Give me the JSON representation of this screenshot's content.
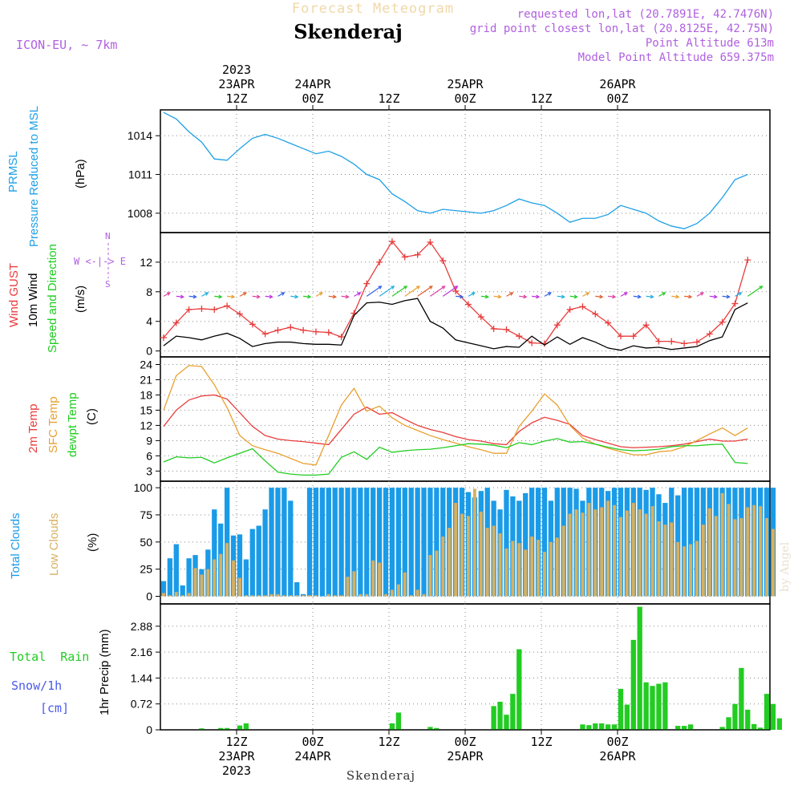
{
  "header": {
    "title": "Forecast Meteogram",
    "location": "Skenderaj",
    "model": "ICON-EU, ~ 7km",
    "requested": "requested lon,lat (20.7891E, 42.7476N)",
    "grid": "grid point closest lon,lat (20.8125E, 42.75N)",
    "altitude": "Point Altitude 613m",
    "model_altitude": "Model Point Altitude 659.375m",
    "credit": "by Angel",
    "footer_location": "Skenderaj"
  },
  "time_axis": {
    "top_labels": [
      {
        "h": 12,
        "lines": [
          "2023",
          "23APR",
          "12Z"
        ]
      },
      {
        "h": 24,
        "lines": [
          "24APR",
          "00Z"
        ]
      },
      {
        "h": 36,
        "lines": [
          "12Z"
        ]
      },
      {
        "h": 48,
        "lines": [
          "25APR",
          "00Z"
        ]
      },
      {
        "h": 60,
        "lines": [
          "12Z"
        ]
      },
      {
        "h": 72,
        "lines": [
          "26APR",
          "00Z"
        ]
      }
    ],
    "bottom_labels": [
      {
        "h": 12,
        "lines": [
          "12Z",
          "23APR",
          "2023"
        ]
      },
      {
        "h": 24,
        "lines": [
          "00Z",
          "24APR"
        ]
      },
      {
        "h": 36,
        "lines": [
          "12Z"
        ]
      },
      {
        "h": 48,
        "lines": [
          "00Z",
          "25APR"
        ]
      },
      {
        "h": 60,
        "lines": [
          "12Z"
        ]
      },
      {
        "h": 72,
        "lines": [
          "00Z",
          "26APR"
        ]
      }
    ]
  },
  "panel_labels": {
    "pressure": {
      "line1": "PRMSL",
      "line2": "Pressure Reduced to MSL",
      "unit": "(hPa)"
    },
    "wind": {
      "gust": "Wind GUST",
      "wind10m": "10m Wind",
      "speed": "Speed and Direction",
      "unit": "(m/s)",
      "compass_w": "W <-|-> E",
      "compass_n": "N",
      "compass_s": "S"
    },
    "temp": {
      "t2m": "2m Temp",
      "sfc": "SFC Temp",
      "dew": "dewpt Temp",
      "unit": "(C)"
    },
    "clouds": {
      "total": "Total Clouds",
      "low": "Low Clouds",
      "unit": "(%)"
    },
    "precip": {
      "rain": "Total  Rain",
      "snow": "Snow/1h",
      "snow_unit": "[cm]",
      "axis": "1hr Precip (mm)"
    }
  },
  "colors": {
    "pressure": "#1ea0e6",
    "gust": "#e83c3c",
    "wind": "#000000",
    "t2m": "#e83c3c",
    "sfc": "#e8a030",
    "dew": "#22cc22",
    "total_cloud": "#1a9be8",
    "low_cloud": "#d8b060",
    "precip": "#22cc22",
    "purple": "#b060e0"
  },
  "chart_data": [
    {
      "type": "line",
      "name": "PRMSL",
      "ylabel": "(hPa)",
      "yticks": [
        1008,
        1011,
        1014
      ],
      "ylim": [
        1006.5,
        1016
      ],
      "x_start_hour": 0,
      "x_step_hours": 2,
      "series": [
        {
          "name": "PRMSL",
          "values": [
            1015.8,
            1015.3,
            1014.3,
            1013.5,
            1012.2,
            1012.1,
            1013.0,
            1013.8,
            1014.1,
            1013.8,
            1013.4,
            1013.0,
            1012.6,
            1012.8,
            1012.4,
            1011.8,
            1011.0,
            1010.6,
            1009.5,
            1008.9,
            1008.2,
            1008.0,
            1008.3,
            1008.2,
            1008.1,
            1008.0,
            1008.2,
            1008.6,
            1009.1,
            1008.8,
            1008.6,
            1008.0,
            1007.3,
            1007.6,
            1007.6,
            1007.9,
            1008.6,
            1008.3,
            1008.0,
            1007.4,
            1007.0,
            1006.8,
            1007.2,
            1008.0,
            1009.2,
            1010.6,
            1011.0
          ]
        }
      ]
    },
    {
      "type": "line",
      "name": "Wind",
      "ylabel": "(m/s)",
      "yticks": [
        0,
        4,
        8,
        12
      ],
      "ylim": [
        -0.8,
        16
      ],
      "x_start_hour": 0,
      "x_step_hours": 2,
      "series": [
        {
          "name": "Wind GUST",
          "values": [
            1.8,
            3.8,
            5.6,
            5.7,
            5.6,
            6.1,
            5.0,
            3.6,
            2.3,
            2.8,
            3.2,
            2.8,
            2.6,
            2.5,
            1.9,
            5.1,
            9.1,
            12.0,
            14.8,
            12.7,
            13.0,
            14.7,
            12.2,
            8.1,
            6.3,
            4.6,
            3.0,
            2.9,
            2.0,
            1.1,
            1.0,
            3.5,
            5.6,
            6.0,
            5.0,
            3.8,
            2.0,
            2.0,
            3.5,
            1.3,
            1.3,
            1.0,
            1.2,
            2.3,
            3.9,
            6.4,
            12.3
          ]
        },
        {
          "name": "10m Wind",
          "values": [
            0.7,
            2.0,
            1.8,
            1.5,
            2.0,
            2.4,
            1.7,
            0.6,
            1.0,
            1.2,
            1.2,
            1.0,
            0.9,
            0.9,
            0.8,
            4.8,
            6.5,
            6.6,
            6.3,
            6.8,
            7.1,
            4.0,
            3.1,
            1.5,
            1.1,
            0.7,
            0.3,
            0.6,
            0.5,
            2.0,
            0.8,
            1.9,
            0.9,
            1.8,
            1.2,
            0.4,
            0.1,
            0.7,
            0.4,
            0.5,
            0.2,
            0.4,
            0.6,
            1.4,
            1.9,
            5.6,
            6.5
          ]
        }
      ]
    },
    {
      "type": "line",
      "name": "Temperature",
      "ylabel": "(C)",
      "yticks": [
        3,
        6,
        9,
        12,
        15,
        18,
        21,
        24
      ],
      "ylim": [
        1,
        25.5
      ],
      "x_start_hour": 0,
      "x_step_hours": 2,
      "series": [
        {
          "name": "2m Temp",
          "values": [
            11.8,
            15.0,
            17.0,
            17.8,
            18.0,
            17.2,
            14.5,
            11.8,
            10.0,
            9.3,
            9.0,
            8.8,
            8.5,
            8.2,
            11.2,
            14.2,
            15.6,
            14.2,
            14.5,
            13.2,
            12.0,
            11.2,
            10.6,
            9.8,
            9.2,
            8.9,
            8.4,
            8.2,
            10.8,
            12.5,
            13.6,
            13.0,
            12.2,
            10.0,
            9.2,
            8.5,
            7.8,
            7.6,
            7.7,
            7.8,
            8.0,
            8.3,
            8.8,
            9.3,
            8.9,
            8.9,
            9.3
          ]
        },
        {
          "name": "SFC Temp",
          "values": [
            15.0,
            21.8,
            23.8,
            23.6,
            20.0,
            15.5,
            10.0,
            8.0,
            7.2,
            6.5,
            5.5,
            4.5,
            4.2,
            10.0,
            16.0,
            19.3,
            14.8,
            15.8,
            13.5,
            12.0,
            11.0,
            10.0,
            9.2,
            8.5,
            7.8,
            7.2,
            6.5,
            6.5,
            11.8,
            14.8,
            18.2,
            16.0,
            12.0,
            9.5,
            8.3,
            7.5,
            6.8,
            6.2,
            6.2,
            6.8,
            7.0,
            7.8,
            9.0,
            10.3,
            11.5,
            10.0,
            11.5
          ]
        },
        {
          "name": "dewpt Temp",
          "values": [
            4.8,
            5.8,
            5.6,
            5.7,
            4.6,
            5.6,
            6.5,
            7.4,
            5.0,
            2.8,
            2.4,
            2.2,
            2.2,
            2.4,
            5.7,
            6.8,
            5.3,
            7.7,
            6.7,
            7.0,
            7.2,
            7.3,
            7.6,
            8.0,
            8.4,
            8.3,
            8.1,
            7.6,
            8.6,
            8.2,
            8.9,
            9.4,
            8.7,
            8.8,
            8.3,
            7.7,
            7.2,
            7.0,
            7.1,
            7.3,
            7.8,
            8.0,
            8.0,
            8.2,
            8.3,
            4.7,
            4.5
          ]
        }
      ]
    },
    {
      "type": "bar",
      "name": "Clouds",
      "ylabel": "(%)",
      "yticks": [
        0,
        25,
        50,
        75,
        100
      ],
      "ylim": [
        -7,
        106
      ],
      "x_start_hour": 0,
      "x_step_hours": 1,
      "series": [
        {
          "name": "Total Clouds",
          "values": [
            14,
            35,
            48,
            10,
            35,
            38,
            25,
            43,
            80,
            67,
            100,
            56,
            57,
            34,
            62,
            65,
            80,
            100,
            100,
            100,
            88,
            13,
            2,
            100,
            100,
            100,
            100,
            100,
            100,
            100,
            100,
            100,
            100,
            100,
            100,
            100,
            100,
            100,
            100,
            100,
            100,
            100,
            100,
            100,
            100,
            100,
            100,
            100,
            96,
            91,
            97,
            100,
            88,
            80,
            98,
            92,
            88,
            95,
            100,
            100,
            100,
            88,
            100,
            100,
            100,
            99,
            88,
            100,
            100,
            100,
            97,
            100,
            100,
            100,
            100,
            100,
            98,
            100,
            94,
            86,
            100,
            93,
            100,
            100,
            100,
            100,
            100,
            100,
            100,
            100,
            100,
            100,
            100,
            100,
            100,
            100,
            100
          ]
        },
        {
          "name": "Low Clouds",
          "values": [
            3,
            1,
            4,
            1,
            3,
            26,
            20,
            25,
            34,
            39,
            49,
            33,
            17,
            1,
            1,
            1,
            1,
            2,
            2,
            1,
            1,
            1,
            1,
            1,
            1,
            0,
            2,
            1,
            1,
            18,
            23,
            2,
            2,
            33,
            31,
            2,
            6,
            11,
            22,
            1,
            6,
            2,
            38,
            42,
            55,
            63,
            86,
            76,
            74,
            99,
            78,
            63,
            65,
            58,
            44,
            51,
            49,
            43,
            55,
            52,
            41,
            50,
            54,
            65,
            76,
            80,
            77,
            86,
            80,
            82,
            88,
            84,
            73,
            79,
            86,
            80,
            76,
            83,
            69,
            66,
            68,
            50,
            46,
            48,
            51,
            66,
            81,
            74,
            95,
            85,
            71,
            72,
            82,
            84,
            83,
            72,
            62
          ]
        }
      ]
    },
    {
      "type": "bar",
      "name": "Precipitation",
      "ylabel": "1hr Precip (mm)",
      "yticks": [
        0,
        0.72,
        1.44,
        2.16,
        2.88
      ],
      "ylim": [
        0,
        3.5
      ],
      "x_start_hour": 0,
      "x_step_hours": 1,
      "series": [
        {
          "name": "Total Rain",
          "values": [
            0,
            0,
            0,
            0,
            0,
            0,
            0.04,
            0,
            0,
            0.05,
            0.05,
            0,
            0.12,
            0.18,
            0,
            0,
            0,
            0,
            0,
            0,
            0,
            0,
            0,
            0,
            0,
            0,
            0,
            0,
            0,
            0,
            0,
            0,
            0,
            0,
            0,
            0,
            0.18,
            0.48,
            0,
            0,
            0,
            0,
            0.08,
            0.05,
            0,
            0,
            0,
            0,
            0,
            0,
            0,
            0,
            0.66,
            0.78,
            0.42,
            1.0,
            2.24,
            0,
            0,
            0,
            0,
            0,
            0,
            0,
            0,
            0,
            0.15,
            0.13,
            0.18,
            0.18,
            0.15,
            0.15,
            1.14,
            0.7,
            2.5,
            3.42,
            1.32,
            1.22,
            1.28,
            1.32,
            0,
            0.11,
            0.11,
            0.15,
            0,
            0,
            0,
            0,
            0.08,
            0.35,
            0.72,
            1.72,
            0.56,
            0.16,
            0.06,
            1.0,
            0.72,
            0.32
          ]
        }
      ]
    }
  ]
}
